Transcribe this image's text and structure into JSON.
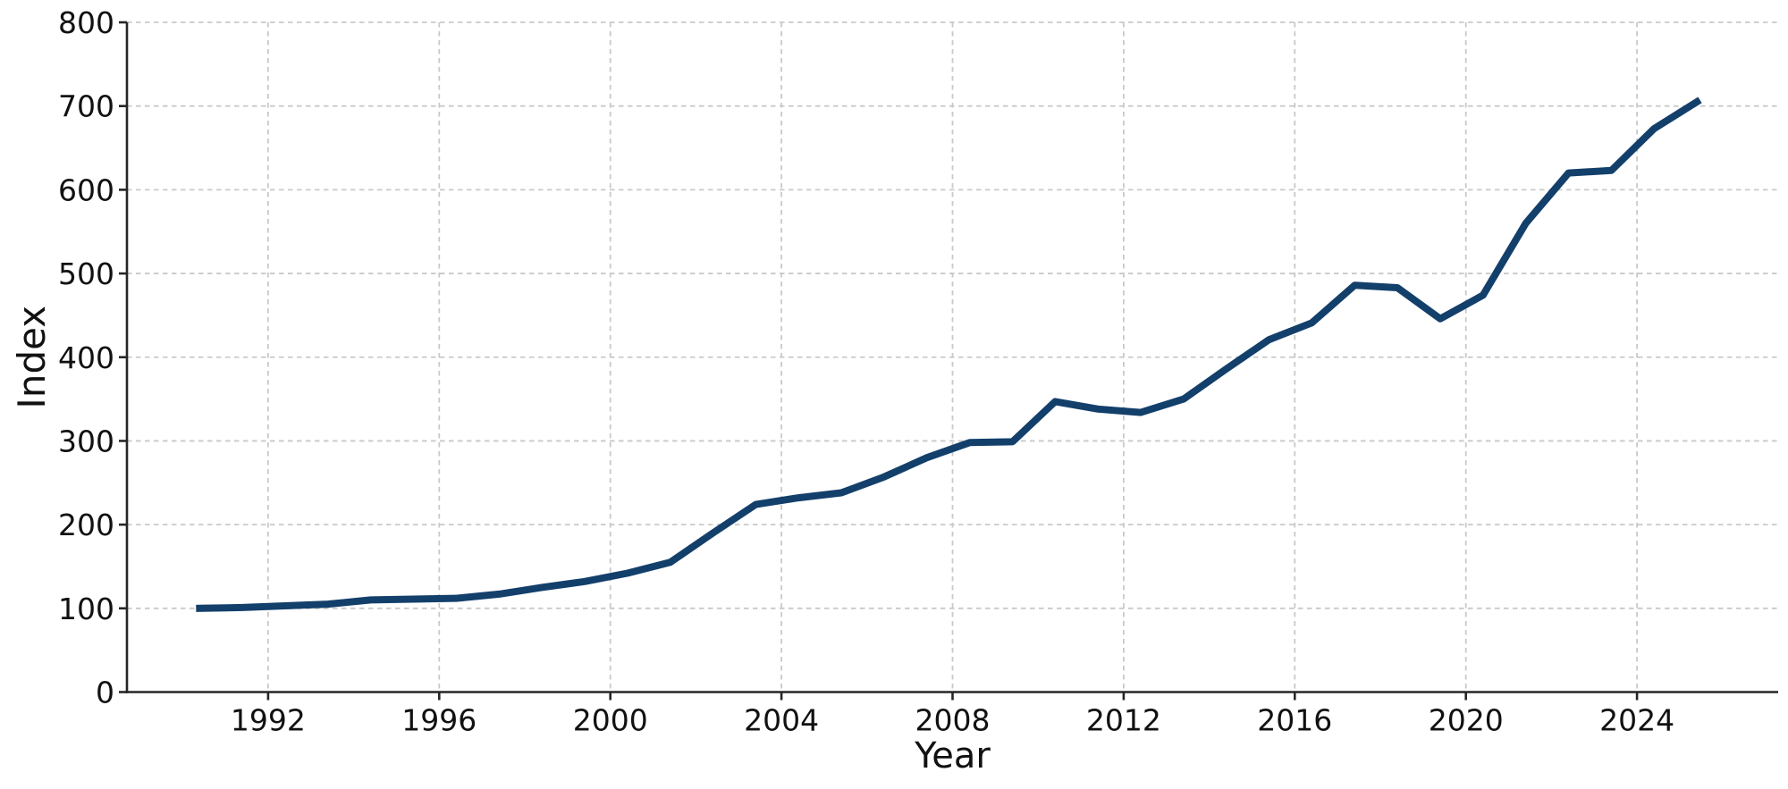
{
  "chart_data": {
    "type": "line",
    "title": "",
    "xlabel": "Year",
    "ylabel": "Index",
    "x": [
      1990,
      1991,
      1992,
      1993,
      1994,
      1995,
      1996,
      1997,
      1998,
      1999,
      2000,
      2001,
      2002,
      2003,
      2004,
      2005,
      2006,
      2007,
      2008,
      2009,
      2010,
      2011,
      2012,
      2013,
      2014,
      2015,
      2016,
      2017,
      2018,
      2019,
      2020,
      2021,
      2022,
      2023,
      2024,
      2025
    ],
    "series": [
      {
        "name": "Index",
        "values": [
          100,
          101,
          103,
          105,
          110,
          111,
          112,
          117,
          125,
          132,
          142,
          155,
          190,
          224,
          232,
          238,
          257,
          280,
          298,
          299,
          347,
          338,
          334,
          350,
          386,
          421,
          441,
          486,
          483,
          446,
          474,
          560,
          620,
          623,
          673,
          705
        ]
      }
    ],
    "xlim": [
      1988.7,
      2027.3
    ],
    "ylim": [
      0,
      800
    ],
    "xticks": [
      1992,
      1996,
      2000,
      2004,
      2008,
      2012,
      2016,
      2020,
      2024
    ],
    "yticks": [
      0,
      100,
      200,
      300,
      400,
      500,
      600,
      700,
      800
    ],
    "grid": true,
    "legend": "none",
    "line_color": "#133f6b",
    "grid_color": "#c9c9c9",
    "spine_color": "#262626",
    "text_color": "#111111",
    "background_color": "#ffffff"
  }
}
